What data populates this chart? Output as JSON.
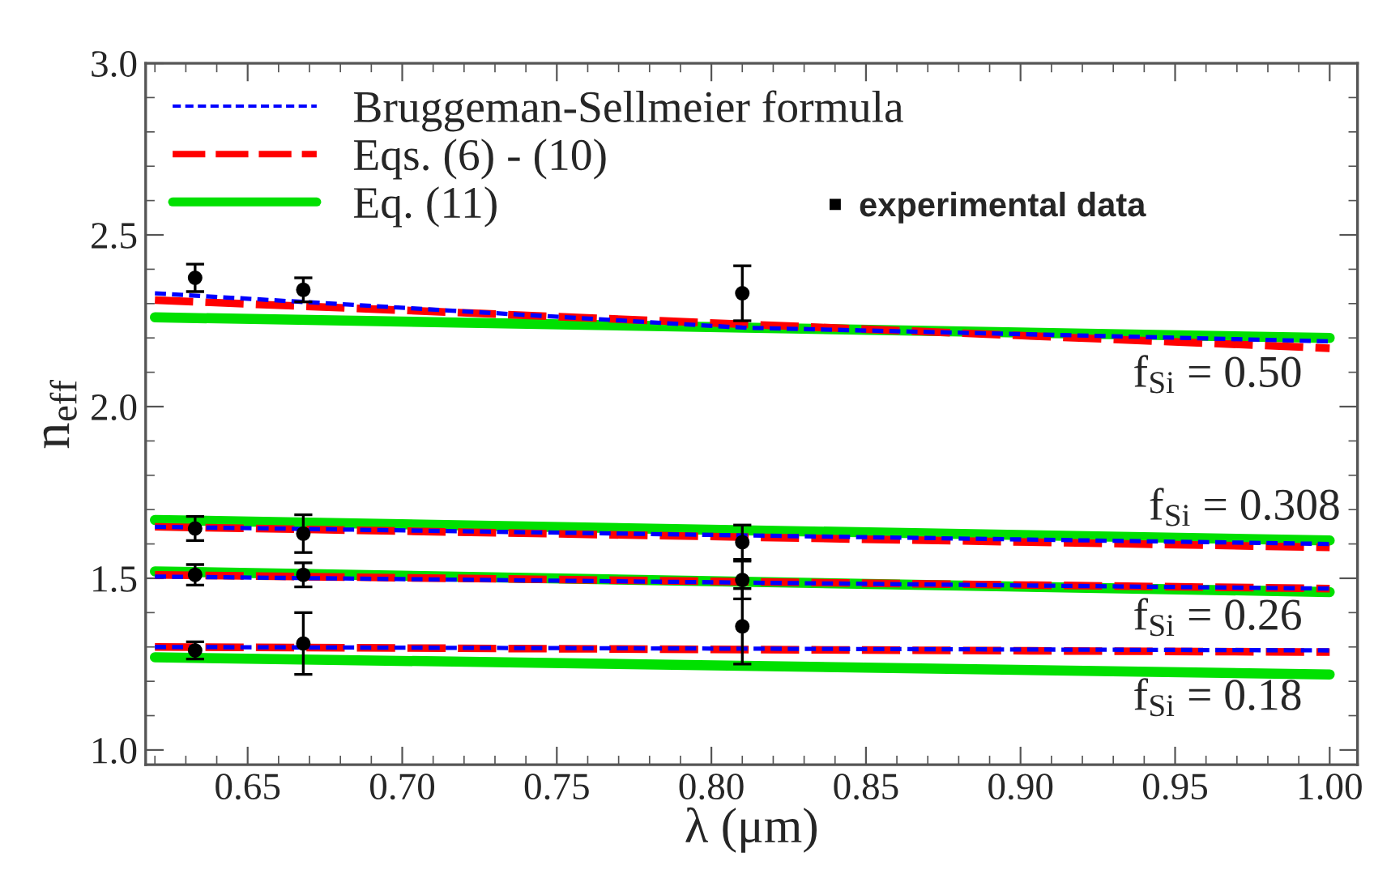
{
  "chart_data": {
    "type": "line",
    "xlabel": "λ (μm)",
    "ylabel": "n$_{eff}$",
    "xlim": [
      0.617,
      1.009
    ],
    "ylim": [
      0.957,
      3.0
    ],
    "xticks": [
      {
        "value": 0.65,
        "label": "0.65"
      },
      {
        "value": 0.7,
        "label": "0.70"
      },
      {
        "value": 0.75,
        "label": "0.75"
      },
      {
        "value": 0.8,
        "label": "0.80"
      },
      {
        "value": 0.85,
        "label": "0.85"
      },
      {
        "value": 0.9,
        "label": "0.90"
      },
      {
        "value": 0.95,
        "label": "0.95"
      },
      {
        "value": 1.0,
        "label": "1.00"
      }
    ],
    "yticks": [
      {
        "value": 1.0,
        "label": "1.0"
      },
      {
        "value": 1.5,
        "label": "1.5"
      },
      {
        "value": 2.0,
        "label": "2.0"
      },
      {
        "value": 2.5,
        "label": "2.5"
      },
      {
        "value": 3.0,
        "label": "3.0"
      }
    ],
    "legend": "top left",
    "grid": false,
    "series": [
      {
        "name": "Bruggeman-Sellmeier formula",
        "line_style": "dotted",
        "color": "#0000ff",
        "x": [
          0.62,
          0.81,
          1.0
        ],
        "values": [
          2.33,
          2.23,
          2.19
        ]
      },
      {
        "name": "Eqs. (6) - (10)",
        "line_style": "dashed",
        "color": "#ff0000",
        "x": [
          0.62,
          0.81,
          1.0
        ],
        "values": [
          2.31,
          2.24,
          2.17
        ]
      },
      {
        "name": "Eq. (11)",
        "line_style": "solid",
        "color": "#00e000",
        "x": [
          0.62,
          1.0
        ],
        "values": [
          2.26,
          2.2
        ]
      },
      {
        "type": "line",
        "line_style": "dotted",
        "color": "#0000ff",
        "x": [
          0.62,
          1.0
        ],
        "values": [
          1.65,
          1.6
        ]
      },
      {
        "type": "line",
        "line_style": "dashed",
        "color": "#ff0000",
        "x": [
          0.62,
          1.0
        ],
        "values": [
          1.65,
          1.59
        ]
      },
      {
        "type": "line",
        "line_style": "solid",
        "color": "#00e000",
        "x": [
          0.62,
          1.0
        ],
        "values": [
          1.67,
          1.61
        ]
      },
      {
        "type": "line",
        "line_style": "dotted",
        "color": "#0000ff",
        "x": [
          0.62,
          1.0
        ],
        "values": [
          1.505,
          1.47
        ]
      },
      {
        "type": "line",
        "line_style": "dashed",
        "color": "#ff0000",
        "x": [
          0.62,
          1.0
        ],
        "values": [
          1.51,
          1.47
        ]
      },
      {
        "type": "line",
        "line_style": "solid",
        "color": "#00e000",
        "x": [
          0.62,
          1.0
        ],
        "values": [
          1.52,
          1.46
        ]
      },
      {
        "type": "line",
        "line_style": "dotted",
        "color": "#0000ff",
        "x": [
          0.62,
          1.0
        ],
        "values": [
          1.3,
          1.29
        ]
      },
      {
        "type": "line",
        "line_style": "dashed",
        "color": "#ff0000",
        "x": [
          0.62,
          1.0
        ],
        "values": [
          1.3,
          1.285
        ]
      },
      {
        "type": "line",
        "line_style": "solid",
        "color": "#00e000",
        "x": [
          0.62,
          1.0
        ],
        "values": [
          1.27,
          1.22
        ]
      },
      {
        "name": "experimental data",
        "type": "scatter",
        "marker": "circle",
        "color": "#000000",
        "x": [
          0.633,
          0.668,
          0.81,
          0.633,
          0.668,
          0.81,
          0.633,
          0.668,
          0.81,
          0.81,
          0.633,
          0.668
        ],
        "values": [
          2.375,
          2.34,
          2.33,
          1.645,
          1.63,
          1.605,
          1.51,
          1.51,
          1.495,
          1.36,
          1.29,
          1.31
        ],
        "errors": [
          0.04,
          0.035,
          0.08,
          0.035,
          0.055,
          0.05,
          0.03,
          0.035,
          0.055,
          0.11,
          0.025,
          0.09
        ]
      }
    ],
    "annotations": [
      "f$_{Si}$ = 0.50",
      "f$_{Si}$ = 0.308",
      "f$_{Si}$ = 0.26",
      "f$_{Si}$ = 0.18"
    ]
  }
}
